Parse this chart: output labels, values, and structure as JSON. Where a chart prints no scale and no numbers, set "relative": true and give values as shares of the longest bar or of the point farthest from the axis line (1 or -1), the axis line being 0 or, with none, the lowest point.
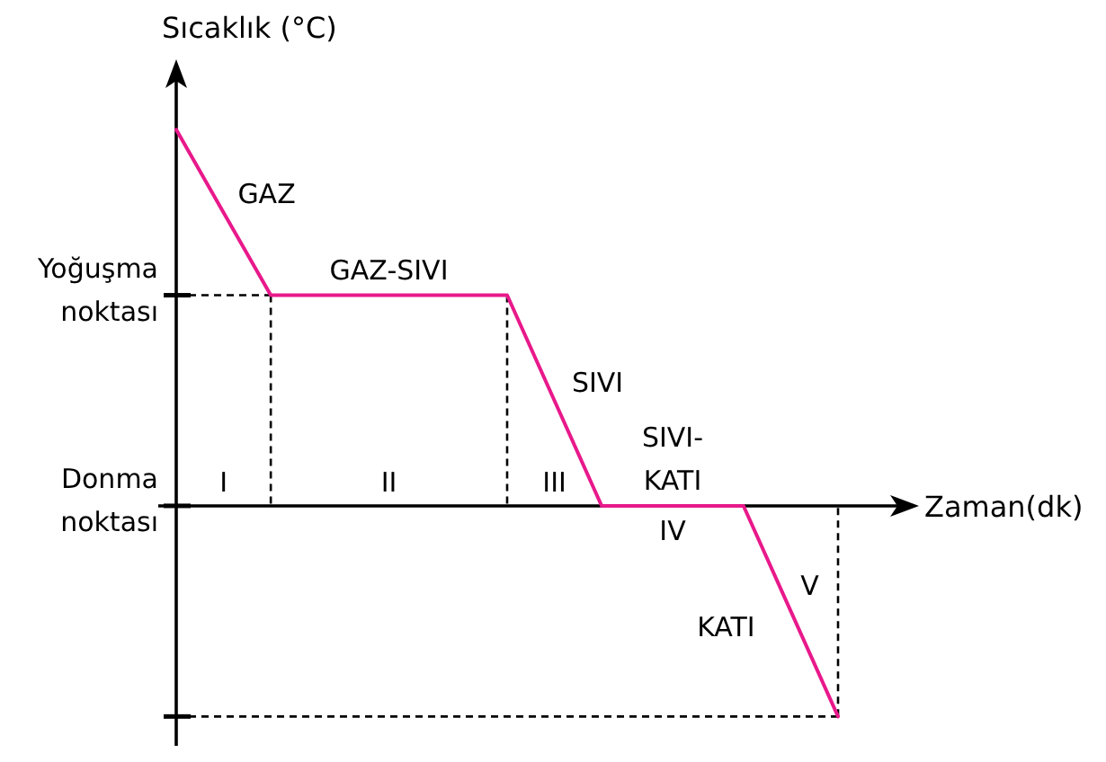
{
  "chart_data": {
    "type": "line",
    "xlabel": "Zaman(dk)",
    "ylabel": "Sıcaklık (°C)",
    "relative": true,
    "categories": [
      null,
      null,
      null,
      null,
      null,
      null,
      null,
      null,
      null,
      null,
      null,
      null,
      null,
      null,
      null
    ],
    "series": [
      {
        "color": "#e8198b",
        "values": [
          1,
          0.78,
          0.56,
          0.56,
          0.56,
          0.56,
          0.56,
          0.56,
          0.28,
          0,
          0,
          0,
          0,
          -0.28,
          -0.56
        ]
      }
    ],
    "ref_lines": [
      {
        "axis": "y",
        "value": 0.56,
        "label": "Yoğuşma\nnoktası",
        "line_style": "dashed"
      },
      {
        "axis": "y",
        "value": 0,
        "label": "Donma\nnoktası"
      },
      {
        "axis": "y",
        "value": -0.56,
        "label": null,
        "line_style": "dashed"
      }
    ],
    "annotations": [
      "GAZ",
      "GAZ-SIVI",
      "SIVI",
      "SIVI-\nKATI",
      "KATI",
      "I",
      "II",
      "III",
      "IV",
      "V"
    ]
  }
}
